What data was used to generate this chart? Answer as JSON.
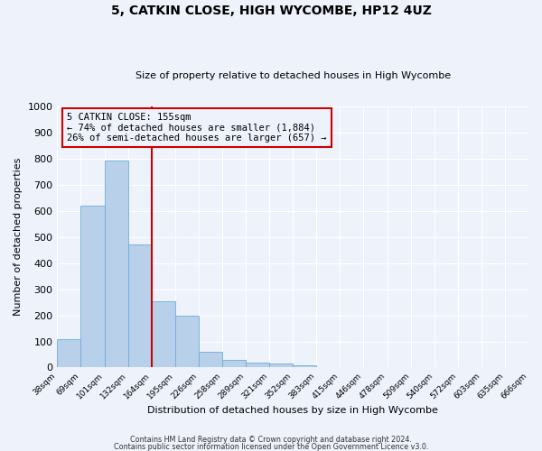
{
  "title1": "5, CATKIN CLOSE, HIGH WYCOMBE, HP12 4UZ",
  "title2": "Size of property relative to detached houses in High Wycombe",
  "xlabel": "Distribution of detached houses by size in High Wycombe",
  "ylabel": "Number of detached properties",
  "bar_values": [
    110,
    620,
    790,
    470,
    255,
    200,
    60,
    30,
    20,
    15,
    10,
    0,
    0,
    0,
    0,
    0,
    0,
    0,
    0,
    0
  ],
  "bin_labels": [
    "38sqm",
    "69sqm",
    "101sqm",
    "132sqm",
    "164sqm",
    "195sqm",
    "226sqm",
    "258sqm",
    "289sqm",
    "321sqm",
    "352sqm",
    "383sqm",
    "415sqm",
    "446sqm",
    "478sqm",
    "509sqm",
    "540sqm",
    "572sqm",
    "603sqm",
    "635sqm",
    "666sqm"
  ],
  "bar_color": "#b8d0ea",
  "bar_edge_color": "#6aaed6",
  "vline_x_index": 3.5,
  "vline_color": "#cc0000",
  "annotation_text": "5 CATKIN CLOSE: 155sqm\n← 74% of detached houses are smaller (1,884)\n26% of semi-detached houses are larger (657) →",
  "annotation_box_color": "#cc0000",
  "ylim": [
    0,
    1000
  ],
  "yticks": [
    0,
    100,
    200,
    300,
    400,
    500,
    600,
    700,
    800,
    900,
    1000
  ],
  "footer1": "Contains HM Land Registry data © Crown copyright and database right 2024.",
  "footer2": "Contains public sector information licensed under the Open Government Licence v3.0.",
  "bg_color": "#eef2fb",
  "grid_color": "#ffffff",
  "num_bars": 20,
  "num_labels": 21
}
